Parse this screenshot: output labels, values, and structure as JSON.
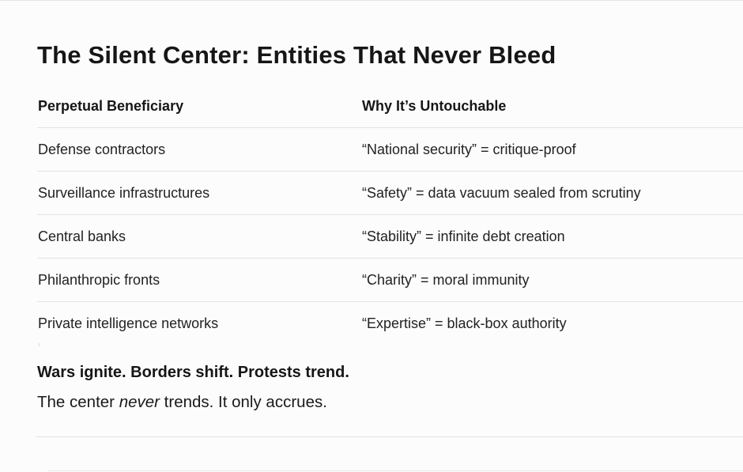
{
  "article": {
    "title": "The Silent Center: Entities That Never Bleed",
    "table": {
      "headers": [
        "Perpetual Beneficiary",
        "Why It’s Untouchable"
      ],
      "rows": [
        [
          "Defense contractors",
          "“National security” = critique-proof"
        ],
        [
          "Surveillance infrastructures",
          "“Safety” = data vacuum sealed from scrutiny"
        ],
        [
          "Central banks",
          "“Stability” = infinite debt creation"
        ],
        [
          "Philanthropic fronts",
          "“Charity” = moral immunity"
        ],
        [
          "Private intelligence networks",
          "“Expertise” = black-box authority"
        ]
      ]
    },
    "closing_bold": "Wars ignite. Borders shift. Protests trend.",
    "closing_line": {
      "before": "The center ",
      "emphasis": "never",
      "after": " trends. It only accrues."
    }
  }
}
